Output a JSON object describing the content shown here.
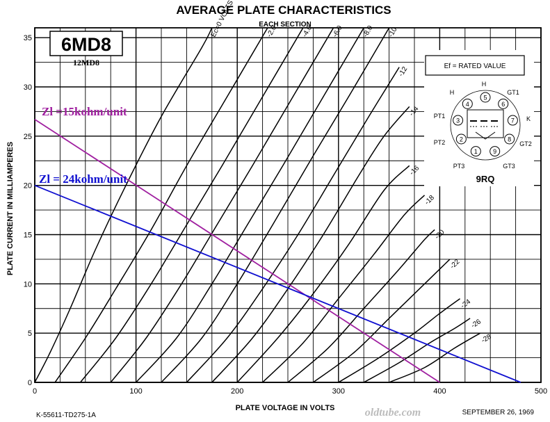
{
  "chart_data": {
    "type": "line",
    "title": "AVERAGE PLATE CHARACTERISTICS",
    "subtitle": "EACH SECTION",
    "xlabel": "PLATE VOLTAGE IN VOLTS",
    "ylabel": "PLATE CURRENT IN MILLIAMPERES",
    "xlim": [
      0,
      500
    ],
    "ylim": [
      0,
      36
    ],
    "x_ticks": [
      "0",
      "100",
      "200",
      "300",
      "400",
      "500"
    ],
    "y_ticks": [
      "0",
      "5",
      "10",
      "15",
      "20",
      "25",
      "30",
      "35"
    ],
    "grid": true,
    "tube_type": "6MD8",
    "tube_alt": "12MD8",
    "heater_note": "Ef = RATED VALUE",
    "basing": "9RQ",
    "pin_labels": [
      "H",
      "5",
      "G",
      "T1",
      "4",
      "6",
      "H",
      "P",
      "T1",
      "3",
      "7",
      "K",
      "P",
      "T2",
      "2",
      "8",
      "G",
      "T2",
      "1",
      "9",
      "P",
      "T3",
      "G",
      "T3"
    ],
    "code": "K-55611-TD275-1A",
    "date": "SEPTEMBER 26, 1969",
    "watermark": "oldtube.com",
    "series": [
      {
        "name": "Ec=0 VOLTS",
        "points": [
          [
            0,
            0
          ],
          [
            15,
            3
          ],
          [
            35,
            7.5
          ],
          [
            60,
            13.5
          ],
          [
            90,
            20
          ],
          [
            125,
            27
          ],
          [
            165,
            34
          ],
          [
            175,
            36
          ]
        ]
      },
      {
        "name": "-2.0",
        "points": [
          [
            20,
            0
          ],
          [
            50,
            4.5
          ],
          [
            80,
            9.5
          ],
          [
            115,
            15.5
          ],
          [
            150,
            22
          ],
          [
            190,
            29
          ],
          [
            230,
            36
          ]
        ]
      },
      {
        "name": "-4.0",
        "points": [
          [
            45,
            0
          ],
          [
            80,
            4.5
          ],
          [
            115,
            10
          ],
          [
            150,
            16
          ],
          [
            185,
            22
          ],
          [
            225,
            29
          ],
          [
            265,
            36
          ]
        ]
      },
      {
        "name": "-6.0",
        "points": [
          [
            75,
            0
          ],
          [
            110,
            4.5
          ],
          [
            145,
            10
          ],
          [
            180,
            16
          ],
          [
            215,
            22
          ],
          [
            255,
            29
          ],
          [
            295,
            36
          ]
        ]
      },
      {
        "name": "-8.0",
        "points": [
          [
            100,
            0
          ],
          [
            140,
            4.5
          ],
          [
            175,
            10
          ],
          [
            210,
            16
          ],
          [
            245,
            22
          ],
          [
            285,
            29
          ],
          [
            325,
            36
          ]
        ]
      },
      {
        "name": "-10",
        "points": [
          [
            125,
            0
          ],
          [
            165,
            4.5
          ],
          [
            200,
            10
          ],
          [
            235,
            16
          ],
          [
            275,
            23
          ],
          [
            310,
            29
          ],
          [
            350,
            36
          ]
        ]
      },
      {
        "name": "-12",
        "points": [
          [
            150,
            0
          ],
          [
            190,
            4.5
          ],
          [
            225,
            9.5
          ],
          [
            260,
            15
          ],
          [
            295,
            21
          ],
          [
            330,
            27
          ],
          [
            360,
            32
          ]
        ]
      },
      {
        "name": "-14",
        "points": [
          [
            175,
            0
          ],
          [
            215,
            4.5
          ],
          [
            250,
            9.5
          ],
          [
            285,
            15
          ],
          [
            320,
            21
          ],
          [
            345,
            25
          ],
          [
            370,
            28
          ]
        ]
      },
      {
        "name": "-16",
        "points": [
          [
            200,
            0
          ],
          [
            240,
            4.5
          ],
          [
            275,
            9
          ],
          [
            310,
            14
          ],
          [
            345,
            19.5
          ],
          [
            370,
            22
          ]
        ]
      },
      {
        "name": "-18",
        "points": [
          [
            225,
            0
          ],
          [
            265,
            4
          ],
          [
            300,
            8.5
          ],
          [
            335,
            13
          ],
          [
            365,
            17
          ],
          [
            385,
            19
          ]
        ]
      },
      {
        "name": "-20",
        "points": [
          [
            250,
            0
          ],
          [
            290,
            3.5
          ],
          [
            325,
            7.5
          ],
          [
            360,
            11.5
          ],
          [
            385,
            14.5
          ],
          [
            395,
            15.5
          ]
        ]
      },
      {
        "name": "-22",
        "points": [
          [
            275,
            0
          ],
          [
            315,
            3
          ],
          [
            350,
            6.5
          ],
          [
            380,
            9.5
          ],
          [
            405,
            12
          ],
          [
            410,
            12.5
          ]
        ]
      },
      {
        "name": "-24",
        "points": [
          [
            300,
            0
          ],
          [
            340,
            2.5
          ],
          [
            375,
            5
          ],
          [
            400,
            7
          ],
          [
            420,
            8.5
          ]
        ]
      },
      {
        "name": "-26",
        "points": [
          [
            325,
            0
          ],
          [
            360,
            2
          ],
          [
            390,
            4
          ],
          [
            415,
            5.5
          ],
          [
            430,
            6.5
          ]
        ]
      },
      {
        "name": "-28",
        "points": [
          [
            350,
            0
          ],
          [
            385,
            1.5
          ],
          [
            415,
            3.5
          ],
          [
            440,
            5
          ]
        ]
      }
    ],
    "load_lines": [
      {
        "name": "Zl =15kohm/unit",
        "color": "#a020a0",
        "points": [
          [
            0,
            26.7
          ],
          [
            400,
            0
          ]
        ]
      },
      {
        "name": "Zl = 24kohm/unit",
        "color": "#1010d0",
        "points": [
          [
            0,
            20
          ],
          [
            480,
            0
          ]
        ]
      }
    ]
  }
}
